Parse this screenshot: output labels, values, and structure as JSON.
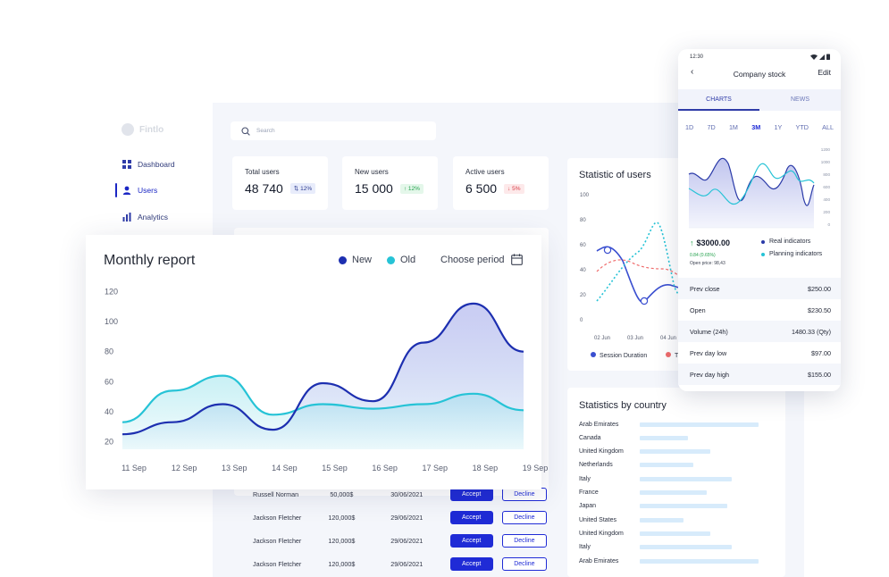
{
  "sidebar": {
    "logo_text": "Fintlo",
    "items": [
      {
        "label": "Dashboard",
        "icon": "dashboard-icon"
      },
      {
        "label": "Users",
        "icon": "user-icon"
      },
      {
        "label": "Analytics",
        "icon": "analytics-icon"
      }
    ]
  },
  "search": {
    "placeholder": "Search"
  },
  "stats": [
    {
      "label": "Total users",
      "value": "48 740",
      "badge": "12%",
      "trend": "both"
    },
    {
      "label": "New users",
      "value": "15 000",
      "badge": "12%",
      "trend": "up"
    },
    {
      "label": "Active users",
      "value": "6 500",
      "badge": "5%",
      "trend": "down"
    }
  ],
  "monthly": {
    "title": "Monthly report",
    "legend": {
      "new": "New",
      "old": "Old"
    },
    "period_label": "Choose period"
  },
  "statistic_users": {
    "title": "Statistic of users",
    "legend": {
      "session": "Session Duration",
      "other": "T"
    }
  },
  "table": {
    "rows": [
      {
        "name": "Russell Norman",
        "amount": "50,000$",
        "date": "30/06/2021",
        "accept": "Accept",
        "decline": "Decline"
      },
      {
        "name": "Jackson Fletcher",
        "amount": "120,000$",
        "date": "29/06/2021",
        "accept": "Accept",
        "decline": "Decline"
      },
      {
        "name": "Jackson Fletcher",
        "amount": "120,000$",
        "date": "29/06/2021",
        "accept": "Accept",
        "decline": "Decline"
      },
      {
        "name": "Jackson Fletcher",
        "amount": "120,000$",
        "date": "29/06/2021",
        "accept": "Accept",
        "decline": "Decline"
      }
    ]
  },
  "countries": {
    "title": "Statistics by country",
    "rows": [
      {
        "name": "Arab Emirates",
        "value": 0.98
      },
      {
        "name": "Canada",
        "value": 0.4
      },
      {
        "name": "United Kingdom",
        "value": 0.58
      },
      {
        "name": "Netherlands",
        "value": 0.44
      },
      {
        "name": "Italy",
        "value": 0.76
      },
      {
        "name": "France",
        "value": 0.55
      },
      {
        "name": "Japan",
        "value": 0.72
      },
      {
        "name": "United States",
        "value": 0.36
      },
      {
        "name": "United Kingdom",
        "value": 0.58
      },
      {
        "name": "Italy",
        "value": 0.76
      },
      {
        "name": "Arab Emirates",
        "value": 0.98
      }
    ]
  },
  "phone": {
    "time": "12:30",
    "title": "Company stock",
    "edit": "Edit",
    "tabs": [
      "CHARTS",
      "NEWS"
    ],
    "ranges": [
      "1D",
      "7D",
      "1M",
      "3M",
      "1Y",
      "YTD",
      "ALL"
    ],
    "active_range": "3M",
    "price": "$3000.00",
    "change": "0.84 (0.65%)",
    "open_price": "Open price: 98,43",
    "legend": {
      "real": "Real indicators",
      "planning": "Planning indicators"
    },
    "rows": [
      {
        "label": "Prev close",
        "value": "$250.00"
      },
      {
        "label": "Open",
        "value": "$230.50"
      },
      {
        "label": "Volume (24h)",
        "value": "1480.33 (Qty)"
      },
      {
        "label": "Prev day low",
        "value": "$97.00"
      },
      {
        "label": "Prev day high",
        "value": "$155.00"
      }
    ]
  },
  "chart_data": [
    {
      "type": "line",
      "id": "monthly",
      "categories": [
        "11 Sep",
        "12 Sep",
        "13 Sep",
        "14 Sep",
        "15 Sep",
        "16 Sep",
        "17 Sep",
        "18 Sep",
        "19 Sep"
      ],
      "yticks": [
        20,
        40,
        60,
        80,
        100,
        120
      ],
      "ylim": [
        15,
        125
      ],
      "series": [
        {
          "name": "New",
          "color": "#1d2fb0",
          "values": [
            25,
            33,
            45,
            28,
            59,
            47,
            86,
            112,
            80
          ]
        },
        {
          "name": "Old",
          "color": "#26c3d6",
          "values": [
            33,
            54,
            64,
            38,
            45,
            42,
            45,
            52,
            41
          ]
        }
      ]
    },
    {
      "type": "line",
      "id": "statistic_users",
      "categories": [
        "02 Jun",
        "03 Jun",
        "04 Jun"
      ],
      "yticks": [
        0,
        20,
        40,
        60,
        80,
        100
      ],
      "ylim": [
        0,
        100
      ],
      "series": [
        {
          "name": "Session Duration",
          "color": "#3a4fd0"
        },
        {
          "name": "T",
          "color": "#ef6b6b"
        }
      ]
    },
    {
      "type": "line",
      "id": "phone",
      "yticks": [
        1200,
        1000,
        800,
        600,
        400,
        200,
        0
      ],
      "series": [
        {
          "name": "Real indicators",
          "color": "#2a3aa8"
        },
        {
          "name": "Planning indicators",
          "color": "#26c3d6"
        }
      ]
    }
  ]
}
